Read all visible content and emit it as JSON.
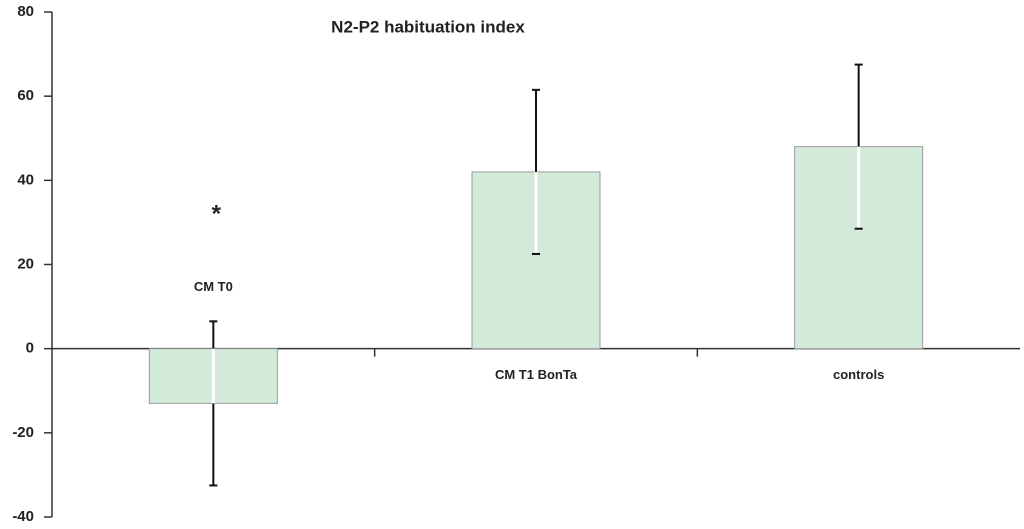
{
  "chart_data": {
    "type": "bar",
    "title": "N2-P2 habituation index",
    "categories": [
      "CM T0",
      "CM T1 BonTa",
      "controls"
    ],
    "values": [
      -13,
      42,
      48
    ],
    "errors": [
      19.5,
      19.5,
      19.5
    ],
    "color": "#d3eadb",
    "ylim": [
      -40,
      80
    ],
    "yticks": [
      -40,
      -20,
      0,
      20,
      40,
      60,
      80
    ],
    "annotations": [
      "*"
    ]
  }
}
